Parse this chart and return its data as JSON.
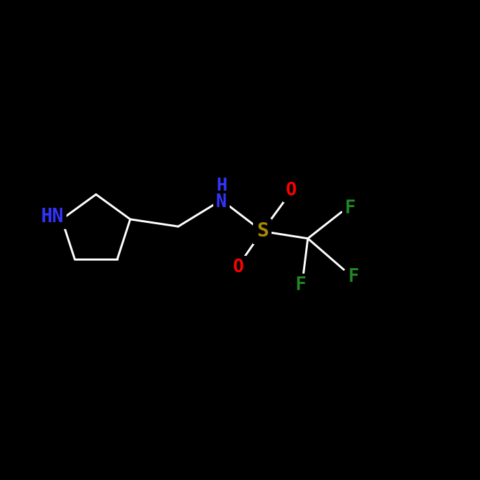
{
  "background_color": "#000000",
  "bond_color": "#ffffff",
  "bond_width": 2.2,
  "atom_colors": {
    "N": "#3333ff",
    "S": "#aa8800",
    "O": "#ff0000",
    "F": "#228822"
  },
  "font_size": 19,
  "figsize": [
    7.0,
    7.0
  ],
  "dpi": 100,
  "xlim": [
    0,
    10
  ],
  "ylim": [
    0,
    10
  ]
}
